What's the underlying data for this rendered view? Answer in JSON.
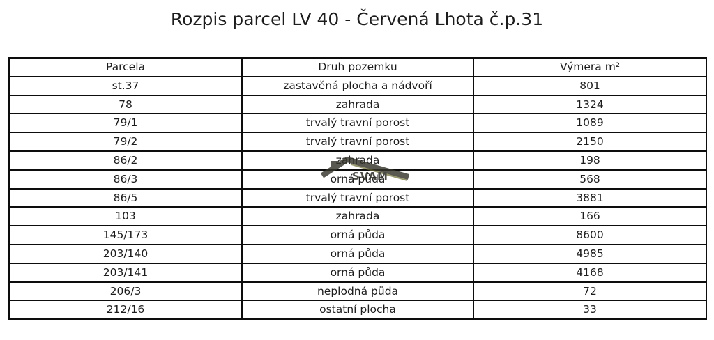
{
  "page": {
    "background": "#ffffff",
    "text_color": "#1c1c1c",
    "border_color": "#0d0d0d"
  },
  "title": "Rozpis parcel LV 40 - Červená Lhota č.p.31",
  "table": {
    "columns": [
      "Parcela",
      "Druh pozemku",
      "Výmera m²"
    ],
    "rows": [
      [
        "st.37",
        "zastavěná plocha a nádvoří",
        "801"
      ],
      [
        "78",
        "zahrada",
        "1324"
      ],
      [
        "79/1",
        "trvalý travní porost",
        "1089"
      ],
      [
        "79/2",
        "trvalý travní porost",
        "2150"
      ],
      [
        "86/2",
        "zahrada",
        "198"
      ],
      [
        "86/3",
        "orná půda",
        "568"
      ],
      [
        "86/5",
        "trvalý travní porost",
        "3881"
      ],
      [
        "103",
        "zahrada",
        "166"
      ],
      [
        "145/173",
        "orná půda",
        "8600"
      ],
      [
        "203/140",
        "orná půda",
        "4985"
      ],
      [
        "203/141",
        "orná půda",
        "4168"
      ],
      [
        "206/3",
        "neplodná půda",
        "72"
      ],
      [
        "212/16",
        "ostatní plocha",
        "33"
      ]
    ]
  },
  "watermark": {
    "text": "SVAM",
    "icon": "roof-logo-icon",
    "roof_color": "#35352c",
    "accent_color": "#6b6b33"
  }
}
